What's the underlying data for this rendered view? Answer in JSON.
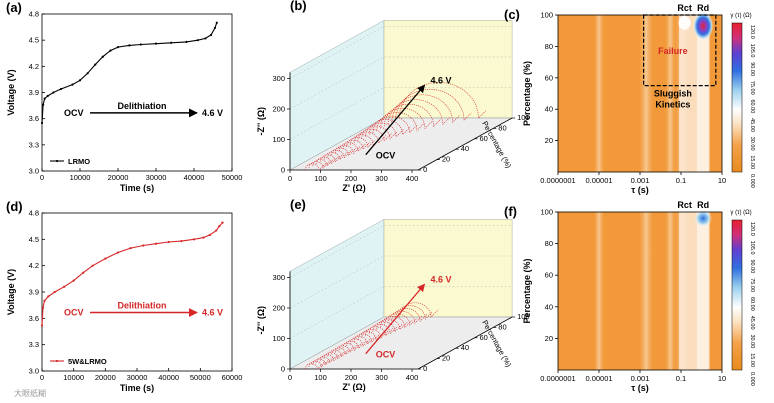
{
  "colors": {
    "black": "#000000",
    "red": "#d62728",
    "heat_base": "#f29a3a",
    "heat_light": "#f7c590",
    "heat_white": "#ffffff",
    "heat_blue": "#1c3fd6",
    "heat_red": "#e8202f",
    "panel_yellow": "#fbf9cf",
    "panel_cyan": "#dff3f5",
    "floor_gray": "#ededed"
  },
  "watermark": "大眼纸糊",
  "chart_data": [
    {
      "id": "a",
      "panel_label": "(a)",
      "type": "line",
      "xlabel": "Time (s)",
      "ylabel": "Voltage (V)",
      "xlim": [
        0,
        50000
      ],
      "ylim": [
        3.0,
        4.8
      ],
      "xticks": [
        0,
        10000,
        20000,
        30000,
        40000,
        50000
      ],
      "yticks": [
        3.0,
        3.3,
        3.6,
        3.9,
        4.2,
        4.5,
        4.8
      ],
      "color": "#000000",
      "legend": "LRMO",
      "annotation": {
        "start": "OCV",
        "arrow_label": "Delithiation",
        "end": "4.6 V"
      },
      "series": [
        {
          "name": "LRMO",
          "x": [
            0,
            300,
            700,
            1500,
            3000,
            5000,
            8000,
            10000,
            12000,
            14000,
            16000,
            18000,
            20000,
            23000,
            26000,
            30000,
            34000,
            38000,
            41000,
            43000,
            44500,
            45500,
            46000
          ],
          "y": [
            3.55,
            3.76,
            3.83,
            3.86,
            3.9,
            3.94,
            3.99,
            4.04,
            4.12,
            4.22,
            4.31,
            4.38,
            4.42,
            4.44,
            4.45,
            4.46,
            4.47,
            4.48,
            4.5,
            4.52,
            4.56,
            4.64,
            4.7
          ]
        }
      ]
    },
    {
      "id": "b",
      "panel_label": "(b)",
      "type": "scatter",
      "xlabel": "Z' (Ω)",
      "ylabel": "-Z'' (Ω)",
      "zlabel": "Percentage (%)",
      "xticks": [
        0,
        100,
        200,
        300,
        400
      ],
      "yticks": [
        0,
        100,
        200,
        300
      ],
      "zticks": [
        0,
        20,
        40,
        60,
        80,
        100
      ],
      "annotation": {
        "start": "OCV",
        "end": "4.6 V"
      },
      "traces": 26,
      "percentages": [
        0,
        4,
        8,
        12,
        16,
        20,
        24,
        28,
        32,
        36,
        40,
        44,
        48,
        52,
        56,
        60,
        64,
        68,
        72,
        76,
        80,
        84,
        88,
        92,
        96,
        100
      ],
      "semicircle_width_ohm": [
        45,
        46,
        47,
        48,
        50,
        52,
        54,
        56,
        59,
        62,
        66,
        70,
        75,
        80,
        86,
        93,
        101,
        110,
        120,
        132,
        146,
        162,
        180,
        200,
        225,
        260
      ]
    },
    {
      "id": "c",
      "panel_label": "(c)",
      "type": "heatmap",
      "xlabel": "τ (s)",
      "ylabel": "Percentage (%)",
      "xscale": "log",
      "xlim": [
        1e-07,
        10
      ],
      "ylim": [
        0,
        100
      ],
      "xticks": [
        "0.0000001",
        "0.00001",
        "0.001",
        "0.1",
        "10"
      ],
      "yticks": [
        20,
        40,
        60,
        80,
        100
      ],
      "peak_labels": [
        "Rct",
        "Rd"
      ],
      "annotation_red": "Failure",
      "annotation_box": "Sluggish Kinetics",
      "colorbar": {
        "title": "γ (τ) (Ω)",
        "ticks": [
          "0.000",
          "15.00",
          "30.00",
          "45.00",
          "60.00",
          "75.00",
          "90.00",
          "105.0",
          "120.0"
        ]
      }
    },
    {
      "id": "d",
      "panel_label": "(d)",
      "type": "line",
      "xlabel": "Time (s)",
      "ylabel": "Voltage (V)",
      "xlim": [
        0,
        60000
      ],
      "ylim": [
        3.0,
        4.8
      ],
      "xticks": [
        0,
        10000,
        20000,
        30000,
        40000,
        50000,
        60000
      ],
      "yticks": [
        3.0,
        3.3,
        3.6,
        3.9,
        4.2,
        4.5,
        4.8
      ],
      "color": "#d62728",
      "legend": "5W&LRMO",
      "annotation": {
        "start": "OCV",
        "arrow_label": "Delithiation",
        "end": "4.6 V"
      },
      "series": [
        {
          "name": "5W&LRMO",
          "x": [
            0,
            300,
            800,
            2000,
            4000,
            7000,
            10000,
            13000,
            16000,
            20000,
            24000,
            28000,
            32000,
            36000,
            40000,
            44000,
            48000,
            51000,
            53000,
            55000,
            56000,
            57000
          ],
          "y": [
            3.52,
            3.72,
            3.8,
            3.85,
            3.9,
            3.96,
            4.03,
            4.12,
            4.2,
            4.28,
            4.35,
            4.4,
            4.43,
            4.45,
            4.47,
            4.48,
            4.5,
            4.52,
            4.55,
            4.6,
            4.65,
            4.69
          ]
        }
      ]
    },
    {
      "id": "e",
      "panel_label": "(e)",
      "type": "scatter",
      "xlabel": "Z' (Ω)",
      "ylabel": "-Z'' (Ω)",
      "zlabel": "Percentage (%)",
      "xticks": [
        0,
        100,
        200,
        300,
        400
      ],
      "yticks": [
        0,
        100,
        200,
        300
      ],
      "zticks": [
        0,
        20,
        40,
        60,
        80,
        100
      ],
      "annotation": {
        "start": "OCV",
        "end": "4.6 V"
      },
      "traces": 26,
      "percentages": [
        0,
        4,
        8,
        12,
        16,
        20,
        24,
        28,
        32,
        36,
        40,
        44,
        48,
        52,
        56,
        60,
        64,
        68,
        72,
        76,
        80,
        84,
        88,
        92,
        96,
        100
      ],
      "semicircle_width_ohm": [
        40,
        41,
        42,
        43,
        44,
        45,
        46,
        47,
        48,
        50,
        52,
        54,
        56,
        58,
        60,
        63,
        66,
        69,
        72,
        76,
        80,
        84,
        88,
        93,
        98,
        104
      ]
    },
    {
      "id": "f",
      "panel_label": "(f)",
      "type": "heatmap",
      "xlabel": "τ (s)",
      "ylabel": "Percentage (%)",
      "xscale": "log",
      "xlim": [
        1e-07,
        10
      ],
      "ylim": [
        0,
        100
      ],
      "xticks": [
        "0.0000001",
        "0.00001",
        "0.001",
        "0.1",
        "10"
      ],
      "yticks": [
        20,
        40,
        60,
        80,
        100
      ],
      "peak_labels": [
        "Rct",
        "Rd"
      ],
      "colorbar": {
        "title": "γ (τ) (Ω)",
        "ticks": [
          "0.000",
          "15.00",
          "30.00",
          "45.00",
          "60.00",
          "75.00",
          "90.00",
          "105.0",
          "120.0"
        ]
      }
    }
  ]
}
